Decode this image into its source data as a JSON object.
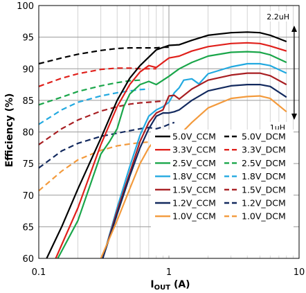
{
  "chart_data": {
    "type": "line",
    "title": "",
    "xlabel": "I",
    "xlabel_sub": "OUT",
    "xlabel_unit": " (A)",
    "ylabel": "Efficiency (%)",
    "xscale": "log",
    "xlim": [
      0.1,
      10
    ],
    "ylim": [
      60,
      100
    ],
    "grid": true,
    "legend_position": "inside-lower-right",
    "x_tick_labels": [
      "0.1",
      "1",
      "10"
    ],
    "y_tick_labels": [
      "60",
      "65",
      "70",
      "75",
      "80",
      "85",
      "90",
      "95",
      "100"
    ],
    "annotations": [
      {
        "text": "2.2uH"
      },
      {
        "text": "1uH"
      }
    ],
    "series": [
      {
        "name": "5.0V_CCM",
        "color": "#000000",
        "dash": "solid",
        "x": [
          0.115,
          0.15,
          0.2,
          0.3,
          0.4,
          0.5,
          0.6,
          0.8,
          1.0,
          1.2,
          1.5,
          2,
          3,
          4,
          5,
          6,
          8
        ],
        "y": [
          60,
          65,
          71,
          79,
          85,
          88.5,
          90.5,
          93,
          93.7,
          93.8,
          94.5,
          95.3,
          95.7,
          95.8,
          95.7,
          95.3,
          94.3
        ]
      },
      {
        "name": "5.0V_DCM",
        "color": "#000000",
        "dash": "dashed",
        "x": [
          0.1,
          0.15,
          0.2,
          0.3,
          0.4,
          0.5,
          0.6,
          0.7,
          0.8,
          0.9,
          1.0
        ],
        "y": [
          90.8,
          91.7,
          92.3,
          92.9,
          93.2,
          93.3,
          93.3,
          93.3,
          93.3,
          93.4,
          93.4
        ]
      },
      {
        "name": "3.3V_CCM",
        "color": "#e0201b",
        "dash": "solid",
        "x": [
          0.135,
          0.2,
          0.3,
          0.4,
          0.5,
          0.6,
          0.7,
          0.8,
          0.9,
          1.0,
          1.2,
          1.5,
          2,
          3,
          4,
          5,
          6,
          8
        ],
        "y": [
          60,
          68,
          78,
          84,
          87.5,
          89.5,
          90.5,
          90.2,
          91,
          91.7,
          92,
          92.8,
          93.5,
          94,
          94.1,
          94,
          93.6,
          92.8
        ]
      },
      {
        "name": "3.3V_DCM",
        "color": "#e0201b",
        "dash": "dashed",
        "x": [
          0.1,
          0.15,
          0.2,
          0.3,
          0.4,
          0.5,
          0.6,
          0.7,
          0.8
        ],
        "y": [
          87.2,
          88.5,
          89.2,
          89.9,
          90.1,
          90.1,
          90,
          90,
          90
        ]
      },
      {
        "name": "2.5V_CCM",
        "color": "#1aa64a",
        "dash": "solid",
        "x": [
          0.14,
          0.2,
          0.3,
          0.35,
          0.4,
          0.45,
          0.5,
          0.6,
          0.7,
          0.8,
          1.0,
          1.2,
          1.5,
          2,
          3,
          4,
          5,
          6,
          8
        ],
        "y": [
          60,
          66,
          76.5,
          78.5,
          80.5,
          84,
          86,
          87.5,
          88,
          87.5,
          88.8,
          90,
          91,
          92,
          92.6,
          92.7,
          92.6,
          92.2,
          91
        ]
      },
      {
        "name": "2.5V_DCM",
        "color": "#1aa64a",
        "dash": "dashed",
        "x": [
          0.1,
          0.15,
          0.2,
          0.3,
          0.4,
          0.5,
          0.6
        ],
        "y": [
          84.3,
          85.5,
          86.4,
          87.3,
          87.8,
          88.1,
          88.2
        ]
      },
      {
        "name": "1.8V_CCM",
        "color": "#22a9e0",
        "dash": "solid",
        "x": [
          0.31,
          0.4,
          0.5,
          0.6,
          0.7,
          0.8,
          0.9,
          1.0,
          1.1,
          1.2,
          1.3,
          1.5,
          1.7,
          2,
          3,
          4,
          5,
          6,
          8
        ],
        "y": [
          60,
          68,
          74.5,
          79.5,
          82.5,
          83.5,
          84,
          84.7,
          86.2,
          87,
          88.2,
          88.4,
          87.6,
          89.2,
          90.3,
          90.8,
          90.8,
          90.5,
          89.3
        ]
      },
      {
        "name": "1.8V_DCM",
        "color": "#22a9e0",
        "dash": "dashed",
        "x": [
          0.1,
          0.15,
          0.2,
          0.3,
          0.4,
          0.5,
          0.6,
          0.7
        ],
        "y": [
          81.2,
          83.5,
          84.7,
          85.7,
          86.2,
          86.5,
          86.7,
          86.8
        ]
      },
      {
        "name": "1.5V_CCM",
        "color": "#a81e22",
        "dash": "solid",
        "x": [
          0.31,
          0.4,
          0.5,
          0.6,
          0.7,
          0.8,
          0.9,
          1.0,
          1.1,
          1.2,
          1.5,
          2,
          3,
          4,
          5,
          6,
          8
        ],
        "y": [
          60,
          67.5,
          73.5,
          78.5,
          81.5,
          83,
          83.5,
          85.7,
          85.8,
          85.2,
          86.8,
          88.2,
          89,
          89.3,
          89.3,
          88.9,
          87.5
        ]
      },
      {
        "name": "1.5V_DCM",
        "color": "#a81e22",
        "dash": "dashed",
        "x": [
          0.1,
          0.15,
          0.2,
          0.3,
          0.4,
          0.5,
          0.6,
          0.7,
          0.8,
          0.9
        ],
        "y": [
          78,
          80.5,
          81.9,
          83.3,
          84,
          84.4,
          84.6,
          84.7,
          84.8,
          84.9
        ]
      },
      {
        "name": "1.2V_CCM",
        "color": "#12295e",
        "dash": "solid",
        "x": [
          0.31,
          0.4,
          0.5,
          0.6,
          0.7,
          0.8,
          0.9,
          1.0,
          1.1,
          1.2,
          1.5,
          2,
          3,
          4,
          5,
          6,
          8
        ],
        "y": [
          60,
          67,
          73,
          77.5,
          80.5,
          82.5,
          83,
          83,
          83.2,
          83.5,
          85,
          86.5,
          87.3,
          87.5,
          87.5,
          87.2,
          85.5
        ]
      },
      {
        "name": "1.2V_DCM",
        "color": "#12295e",
        "dash": "dashed",
        "x": [
          0.1,
          0.15,
          0.2,
          0.3,
          0.4,
          0.5,
          0.6,
          0.7,
          0.8,
          0.9,
          1.0,
          1.1
        ],
        "y": [
          74.3,
          77,
          78.2,
          79.3,
          79.8,
          80.2,
          80.5,
          80.7,
          80.5,
          80.8,
          81.2,
          81.5
        ]
      },
      {
        "name": "1.0V_CCM",
        "color": "#f39a3c",
        "dash": "solid",
        "x": [
          0.3,
          0.4,
          0.5,
          0.6,
          0.7,
          0.8,
          0.9,
          1.0,
          1.2,
          1.5,
          2,
          3,
          4,
          5,
          6,
          8
        ],
        "y": [
          60,
          66,
          71,
          75,
          77.5,
          79,
          79.2,
          78,
          79.5,
          81.5,
          83.8,
          85.3,
          85.6,
          85.7,
          85.3,
          83.2
        ]
      },
      {
        "name": "1.0V_DCM",
        "color": "#f39a3c",
        "dash": "dashed",
        "x": [
          0.1,
          0.15,
          0.2,
          0.3,
          0.4,
          0.5,
          0.6,
          0.7,
          0.8
        ],
        "y": [
          70.7,
          73.8,
          75.6,
          77.1,
          77.8,
          78.1,
          78.3,
          78.4,
          78.5
        ]
      }
    ]
  }
}
